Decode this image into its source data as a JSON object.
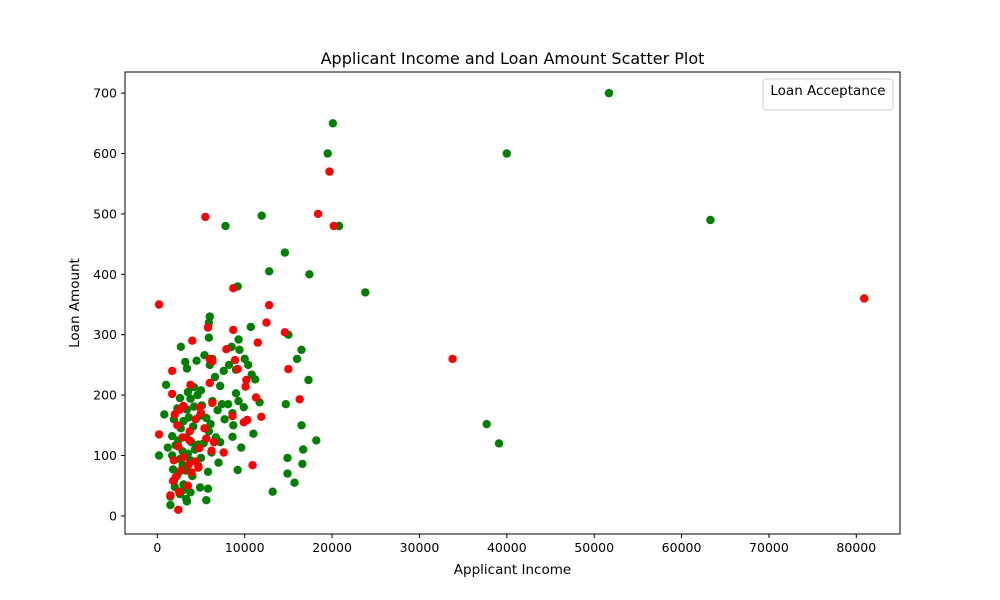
{
  "chart_data": {
    "type": "scatter",
    "title": "Applicant Income and Loan Amount Scatter Plot",
    "xlabel": "Applicant Income",
    "ylabel": "Loan Amount",
    "xlim": [
      -3700,
      85000
    ],
    "ylim": [
      -30,
      735
    ],
    "xticks": [
      0,
      10000,
      20000,
      30000,
      40000,
      50000,
      60000,
      70000,
      80000
    ],
    "yticks": [
      0,
      100,
      200,
      300,
      400,
      500,
      600,
      700
    ],
    "grid": false,
    "legend": {
      "title": "Loan Acceptance",
      "placement": "top-right",
      "entries": []
    },
    "colors": {
      "accepted": "#008000",
      "rejected": "#ff0000"
    },
    "series": [
      {
        "color": "#008000",
        "points": [
          [
            51700,
            700
          ],
          [
            20100,
            650
          ],
          [
            19500,
            600
          ],
          [
            40000,
            600
          ],
          [
            11950,
            497
          ],
          [
            20800,
            480
          ],
          [
            7800,
            480
          ],
          [
            63300,
            490
          ],
          [
            14600,
            436
          ],
          [
            12800,
            405
          ],
          [
            17400,
            400
          ],
          [
            23800,
            370
          ],
          [
            9200,
            380
          ],
          [
            6000,
            330
          ],
          [
            5900,
            320
          ],
          [
            10700,
            313
          ],
          [
            15000,
            300
          ],
          [
            5900,
            295
          ],
          [
            9300,
            292
          ],
          [
            8500,
            280
          ],
          [
            2700,
            280
          ],
          [
            16500,
            275
          ],
          [
            9400,
            275
          ],
          [
            5400,
            266
          ],
          [
            10000,
            260
          ],
          [
            16000,
            260
          ],
          [
            6300,
            260
          ],
          [
            4500,
            257
          ],
          [
            3200,
            255
          ],
          [
            8200,
            250
          ],
          [
            10400,
            250
          ],
          [
            6000,
            250
          ],
          [
            3400,
            244
          ],
          [
            9000,
            242
          ],
          [
            7600,
            240
          ],
          [
            10800,
            234
          ],
          [
            11200,
            226
          ],
          [
            17300,
            225
          ],
          [
            6600,
            230
          ],
          [
            1000,
            217
          ],
          [
            4200,
            213
          ],
          [
            7200,
            215
          ],
          [
            5000,
            208
          ],
          [
            3500,
            205
          ],
          [
            9000,
            203
          ],
          [
            4600,
            200
          ],
          [
            2600,
            195
          ],
          [
            3800,
            194
          ],
          [
            6300,
            190
          ],
          [
            9300,
            190
          ],
          [
            11700,
            188
          ],
          [
            14700,
            185
          ],
          [
            7400,
            185
          ],
          [
            8100,
            185
          ],
          [
            5100,
            183
          ],
          [
            9900,
            180
          ],
          [
            4200,
            181
          ],
          [
            2300,
            178
          ],
          [
            3400,
            176
          ],
          [
            6900,
            175
          ],
          [
            8600,
            170
          ],
          [
            800,
            168
          ],
          [
            4900,
            166
          ],
          [
            1900,
            160
          ],
          [
            3600,
            163
          ],
          [
            5600,
            162
          ],
          [
            7700,
            160
          ],
          [
            3000,
            157
          ],
          [
            6100,
            152
          ],
          [
            8700,
            150
          ],
          [
            16500,
            150
          ],
          [
            4100,
            148
          ],
          [
            2700,
            145
          ],
          [
            5900,
            140
          ],
          [
            11000,
            136
          ],
          [
            1700,
            132
          ],
          [
            3300,
            130
          ],
          [
            6700,
            130
          ],
          [
            8600,
            131
          ],
          [
            18200,
            125
          ],
          [
            2400,
            125
          ],
          [
            3900,
            122
          ],
          [
            5300,
            120
          ],
          [
            7200,
            122
          ],
          [
            39100,
            120
          ],
          [
            2100,
            117
          ],
          [
            4700,
            118
          ],
          [
            9600,
            113
          ],
          [
            16700,
            110
          ],
          [
            1200,
            113
          ],
          [
            4300,
            110
          ],
          [
            2900,
            107
          ],
          [
            6200,
            105
          ],
          [
            3500,
            103
          ],
          [
            200,
            100
          ],
          [
            1700,
            100
          ],
          [
            5000,
            96
          ],
          [
            14900,
            96
          ],
          [
            2600,
            94
          ],
          [
            3800,
            92
          ],
          [
            7000,
            88
          ],
          [
            16600,
            86
          ],
          [
            2900,
            84
          ],
          [
            4700,
            83
          ],
          [
            1800,
            77
          ],
          [
            3300,
            75
          ],
          [
            9200,
            76
          ],
          [
            5800,
            73
          ],
          [
            14900,
            70
          ],
          [
            2300,
            68
          ],
          [
            4000,
            66
          ],
          [
            1900,
            58
          ],
          [
            15700,
            55
          ],
          [
            3000,
            52
          ],
          [
            2000,
            48
          ],
          [
            4900,
            47
          ],
          [
            5800,
            45
          ],
          [
            13200,
            40
          ],
          [
            3000,
            43
          ],
          [
            3800,
            39
          ],
          [
            2600,
            36
          ],
          [
            1500,
            32
          ],
          [
            3300,
            28
          ],
          [
            5600,
            26
          ],
          [
            1500,
            18
          ],
          [
            3400,
            24
          ],
          [
            37700,
            152
          ]
        ]
      },
      {
        "color": "#ff0000",
        "points": [
          [
            80900,
            360
          ],
          [
            33800,
            260
          ],
          [
            19700,
            570
          ],
          [
            18400,
            500
          ],
          [
            5500,
            495
          ],
          [
            20200,
            480
          ],
          [
            200,
            350
          ],
          [
            12800,
            349
          ],
          [
            8700,
            377
          ],
          [
            12500,
            320
          ],
          [
            5800,
            312
          ],
          [
            8700,
            308
          ],
          [
            14600,
            304
          ],
          [
            4000,
            290
          ],
          [
            11500,
            287
          ],
          [
            7900,
            276
          ],
          [
            6000,
            260
          ],
          [
            8900,
            258
          ],
          [
            6300,
            256
          ],
          [
            9200,
            243
          ],
          [
            15000,
            243
          ],
          [
            1700,
            240
          ],
          [
            10200,
            225
          ],
          [
            6000,
            220
          ],
          [
            3800,
            217
          ],
          [
            10100,
            214
          ],
          [
            1700,
            202
          ],
          [
            16300,
            193
          ],
          [
            11300,
            196
          ],
          [
            6300,
            187
          ],
          [
            4900,
            180
          ],
          [
            3000,
            182
          ],
          [
            2600,
            176
          ],
          [
            5000,
            170
          ],
          [
            2000,
            168
          ],
          [
            8600,
            165
          ],
          [
            11900,
            164
          ],
          [
            4400,
            160
          ],
          [
            10300,
            159
          ],
          [
            9900,
            155
          ],
          [
            2300,
            150
          ],
          [
            5400,
            145
          ],
          [
            3700,
            140
          ],
          [
            200,
            135
          ],
          [
            2900,
            130
          ],
          [
            5600,
            128
          ],
          [
            3700,
            125
          ],
          [
            6500,
            122
          ],
          [
            2400,
            115
          ],
          [
            4800,
            112
          ],
          [
            6200,
            108
          ],
          [
            7600,
            105
          ],
          [
            3000,
            97
          ],
          [
            1900,
            92
          ],
          [
            4400,
            90
          ],
          [
            3600,
            85
          ],
          [
            4700,
            80
          ],
          [
            10900,
            84
          ],
          [
            2700,
            75
          ],
          [
            3900,
            72
          ],
          [
            2100,
            64
          ],
          [
            1800,
            58
          ],
          [
            3500,
            50
          ],
          [
            2500,
            40
          ],
          [
            1500,
            34
          ],
          [
            2400,
            10
          ]
        ]
      }
    ]
  }
}
